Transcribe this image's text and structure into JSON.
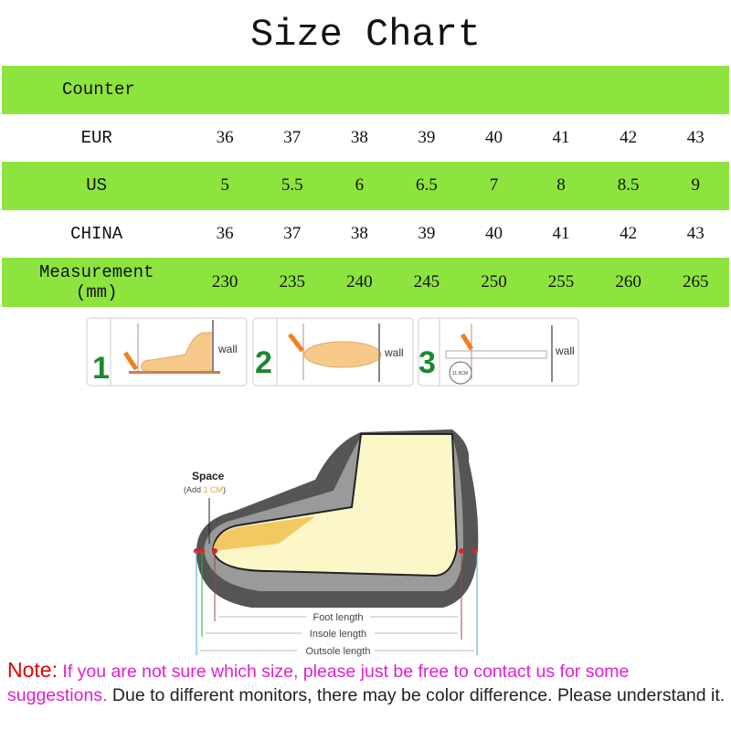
{
  "title": "Size Chart",
  "table": {
    "header": "Counter",
    "rows": [
      {
        "label": "EUR",
        "values": [
          "36",
          "37",
          "38",
          "39",
          "40",
          "41",
          "42",
          "43"
        ]
      },
      {
        "label": "US",
        "values": [
          "5",
          "5.5",
          "6",
          "6.5",
          "7",
          "8",
          "8.5",
          "9"
        ]
      },
      {
        "label": "CHINA",
        "values": [
          "36",
          "37",
          "38",
          "39",
          "40",
          "41",
          "42",
          "43"
        ]
      },
      {
        "label": "Measurement",
        "label2": "(mm)",
        "values": [
          "230",
          "235",
          "240",
          "245",
          "250",
          "255",
          "260",
          "265"
        ]
      }
    ]
  },
  "steps": {
    "s1": "1",
    "s2": "2",
    "s3": "3",
    "wall": "wall",
    "ruler": "11.5CM"
  },
  "diagram": {
    "space": "Space",
    "add_pre": "(Add ",
    "add_val": "1 CM",
    "add_post": ")",
    "foot": "Foot length",
    "insole": "Insole length",
    "outsole": "Outsole length"
  },
  "note": {
    "label": "Note:",
    "pink": " If you are not sure which size, please just be free to contact us for some suggestions.",
    "rest": " Due to different monitors, there may be color difference. Please understand it."
  },
  "colors": {
    "green": "#8ee43f",
    "note_red": "#e00000",
    "note_pink": "#e020d0"
  }
}
